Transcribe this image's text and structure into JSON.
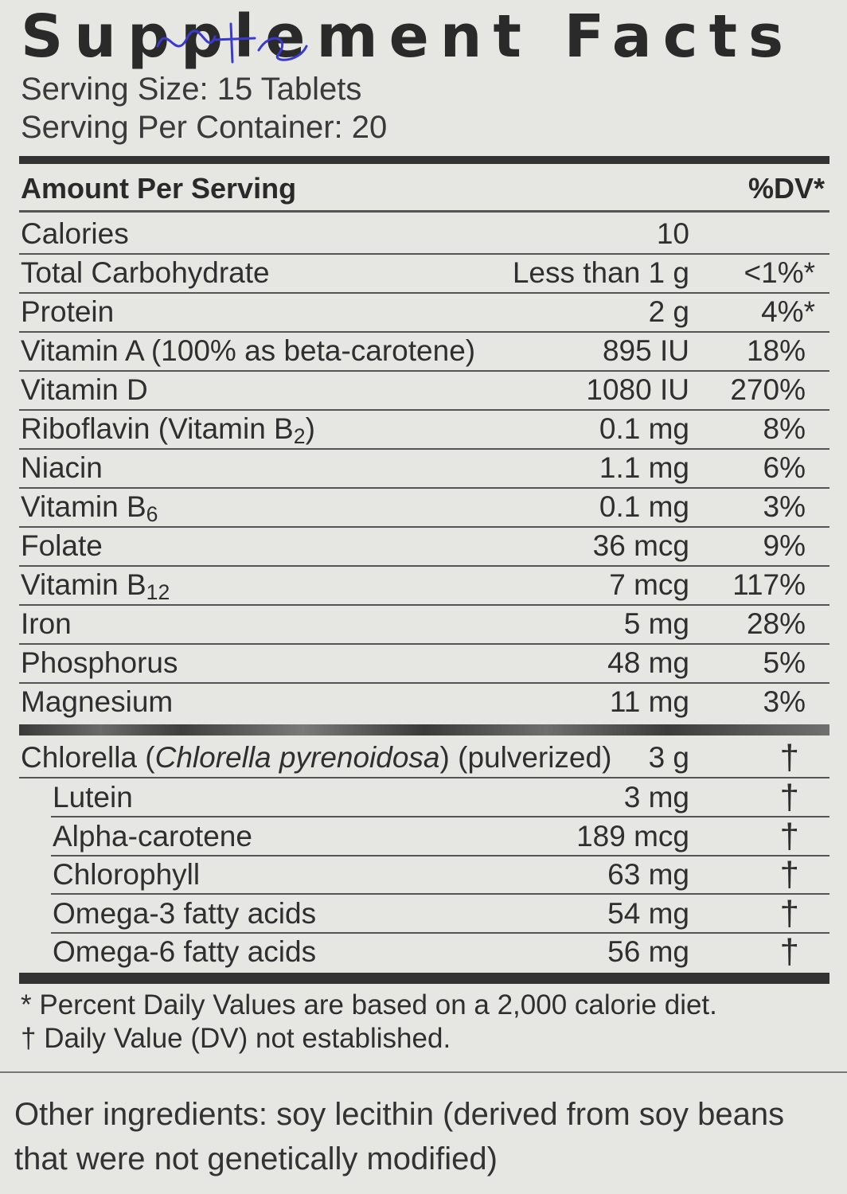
{
  "title": "Supplement Facts",
  "serving_size": "Serving Size: 15 Tablets",
  "servings_per_container": "Serving Per Container: 20",
  "header": {
    "amount_label": "Amount Per Serving",
    "dv_label": "%DV*"
  },
  "nutrients": [
    {
      "name": "Calories",
      "amount": "10",
      "dv": ""
    },
    {
      "name": "Total Carbohydrate",
      "amount": "Less than 1 g",
      "dv": "<1%*"
    },
    {
      "name": "Protein",
      "amount": "2 g",
      "dv": "4%*"
    },
    {
      "name": "Vitamin A (100% as beta-carotene)",
      "amount": "895 IU",
      "dv": "18%"
    },
    {
      "name": "Vitamin D",
      "amount": "1080 IU",
      "dv": "270%"
    },
    {
      "name": "Riboflavin (Vitamin B",
      "name_sub": "2",
      "name_after": ")",
      "amount": "0.1 mg",
      "dv": "8%"
    },
    {
      "name": "Niacin",
      "amount": "1.1 mg",
      "dv": "6%"
    },
    {
      "name": "Vitamin B",
      "name_sub": "6",
      "amount": "0.1 mg",
      "dv": "3%"
    },
    {
      "name": "Folate",
      "amount": "36 mcg",
      "dv": "9%"
    },
    {
      "name": "Vitamin B",
      "name_sub": "12",
      "amount": "7 mcg",
      "dv": "117%"
    },
    {
      "name": "Iron",
      "amount": "5 mg",
      "dv": "28%"
    },
    {
      "name": "Phosphorus",
      "amount": "48 mg",
      "dv": "5%"
    },
    {
      "name": "Magnesium",
      "amount": "11 mg",
      "dv": "3%"
    }
  ],
  "chlorella": {
    "name_prefix": "Chlorella (",
    "name_italic": "Chlorella pyrenoidosa",
    "name_suffix": ") (pulverized)",
    "amount": "3 g",
    "dv": "†"
  },
  "sub_ingredients": [
    {
      "name": "Lutein",
      "amount": "3 mg",
      "dv": "†"
    },
    {
      "name": "Alpha-carotene",
      "amount": "189 mcg",
      "dv": "†"
    },
    {
      "name": "Chlorophyll",
      "amount": "63 mg",
      "dv": "†"
    },
    {
      "name": "Omega-3 fatty acids",
      "amount": "54 mg",
      "dv": "†"
    },
    {
      "name": "Omega-6 fatty acids",
      "amount": "56 mg",
      "dv": "†"
    }
  ],
  "footnotes": {
    "percent_dv": "* Percent Daily Values are based on a 2,000 calorie diet.",
    "dagger": "† Daily Value (DV) not established."
  },
  "other_ingredients": "Other ingredients: soy lecithin (derived from soy beans that were not genetically modified)",
  "colors": {
    "ink": "#2b2b2b",
    "background": "#e6e6e3",
    "scribble": "#3a3ad0"
  }
}
